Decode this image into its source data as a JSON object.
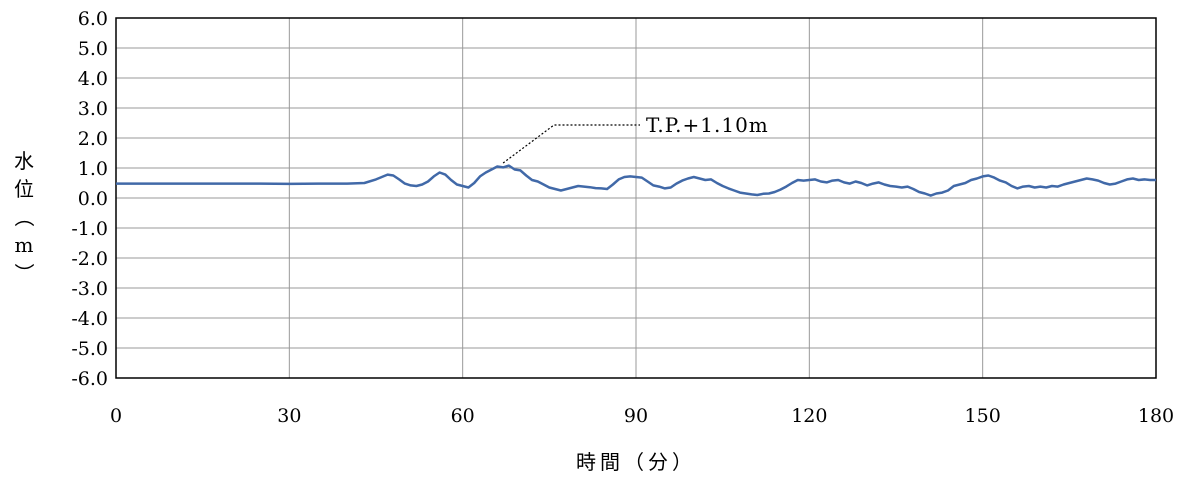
{
  "chart_data": {
    "type": "line",
    "xlabel": "時間（分）",
    "ylabel": "水位（m）",
    "xlim": [
      0,
      180
    ],
    "ylim": [
      -6,
      6
    ],
    "x_ticks": [
      0,
      30,
      60,
      90,
      120,
      150,
      180
    ],
    "x_tick_labels": [
      "0",
      "30",
      "60",
      "90",
      "120",
      "150",
      "180"
    ],
    "y_ticks": [
      6,
      5,
      4,
      3,
      2,
      1,
      0,
      -1,
      -2,
      -3,
      -4,
      -5,
      -6
    ],
    "y_tick_labels": [
      "6.0",
      "5.0",
      "4.0",
      "3.0",
      "2.0",
      "1.0",
      "0.0",
      "-1.0",
      "-2.0",
      "-3.0",
      "-4.0",
      "-5.0",
      "-6.0"
    ],
    "grid": true,
    "colors": {
      "line": "#4169a8",
      "grid": "#999999",
      "axis": "#000000"
    },
    "annotation": {
      "text": "T.P.+1.10m",
      "x": 67,
      "y": 1.1
    },
    "series": [
      {
        "x": [
          0,
          10,
          20,
          25,
          30,
          35,
          40,
          43,
          45,
          47,
          48,
          49,
          50,
          51,
          52,
          53,
          54,
          55,
          56,
          57,
          58,
          59,
          60,
          61,
          62,
          63,
          64,
          65,
          66,
          67,
          68,
          69,
          70,
          71,
          72,
          73,
          74,
          75,
          76,
          77,
          78,
          79,
          80,
          81,
          82,
          83,
          84,
          85,
          86,
          87,
          88,
          89,
          90,
          91,
          92,
          93,
          94,
          95,
          96,
          97,
          98,
          99,
          100,
          101,
          102,
          103,
          104,
          105,
          106,
          107,
          108,
          109,
          110,
          111,
          112,
          113,
          114,
          115,
          116,
          117,
          118,
          119,
          120,
          121,
          122,
          123,
          124,
          125,
          126,
          127,
          128,
          129,
          130,
          131,
          132,
          133,
          134,
          135,
          136,
          137,
          138,
          139,
          140,
          141,
          142,
          143,
          144,
          145,
          146,
          147,
          148,
          149,
          150,
          151,
          152,
          153,
          154,
          155,
          156,
          157,
          158,
          159,
          160,
          161,
          162,
          163,
          164,
          165,
          166,
          167,
          168,
          169,
          170,
          171,
          172,
          173,
          174,
          175,
          176,
          177,
          178,
          179,
          180
        ],
        "y": [
          0.48,
          0.48,
          0.48,
          0.48,
          0.47,
          0.48,
          0.48,
          0.5,
          0.62,
          0.78,
          0.75,
          0.62,
          0.48,
          0.42,
          0.4,
          0.45,
          0.55,
          0.72,
          0.85,
          0.78,
          0.6,
          0.45,
          0.4,
          0.35,
          0.5,
          0.72,
          0.85,
          0.95,
          1.05,
          1.02,
          1.08,
          0.95,
          0.92,
          0.75,
          0.6,
          0.55,
          0.45,
          0.35,
          0.3,
          0.25,
          0.3,
          0.35,
          0.4,
          0.38,
          0.36,
          0.33,
          0.32,
          0.3,
          0.45,
          0.62,
          0.7,
          0.72,
          0.7,
          0.68,
          0.55,
          0.42,
          0.38,
          0.32,
          0.35,
          0.48,
          0.58,
          0.65,
          0.7,
          0.65,
          0.6,
          0.62,
          0.5,
          0.4,
          0.32,
          0.25,
          0.18,
          0.15,
          0.12,
          0.1,
          0.14,
          0.15,
          0.2,
          0.28,
          0.38,
          0.5,
          0.6,
          0.58,
          0.6,
          0.62,
          0.55,
          0.52,
          0.58,
          0.6,
          0.52,
          0.48,
          0.55,
          0.5,
          0.42,
          0.48,
          0.52,
          0.45,
          0.4,
          0.38,
          0.35,
          0.38,
          0.3,
          0.2,
          0.15,
          0.08,
          0.15,
          0.18,
          0.25,
          0.4,
          0.45,
          0.5,
          0.6,
          0.65,
          0.72,
          0.75,
          0.68,
          0.58,
          0.52,
          0.4,
          0.32,
          0.38,
          0.4,
          0.35,
          0.38,
          0.35,
          0.4,
          0.38,
          0.45,
          0.5,
          0.55,
          0.6,
          0.65,
          0.62,
          0.58,
          0.5,
          0.45,
          0.48,
          0.55,
          0.62,
          0.65,
          0.6,
          0.62,
          0.6,
          0.6
        ]
      }
    ]
  }
}
